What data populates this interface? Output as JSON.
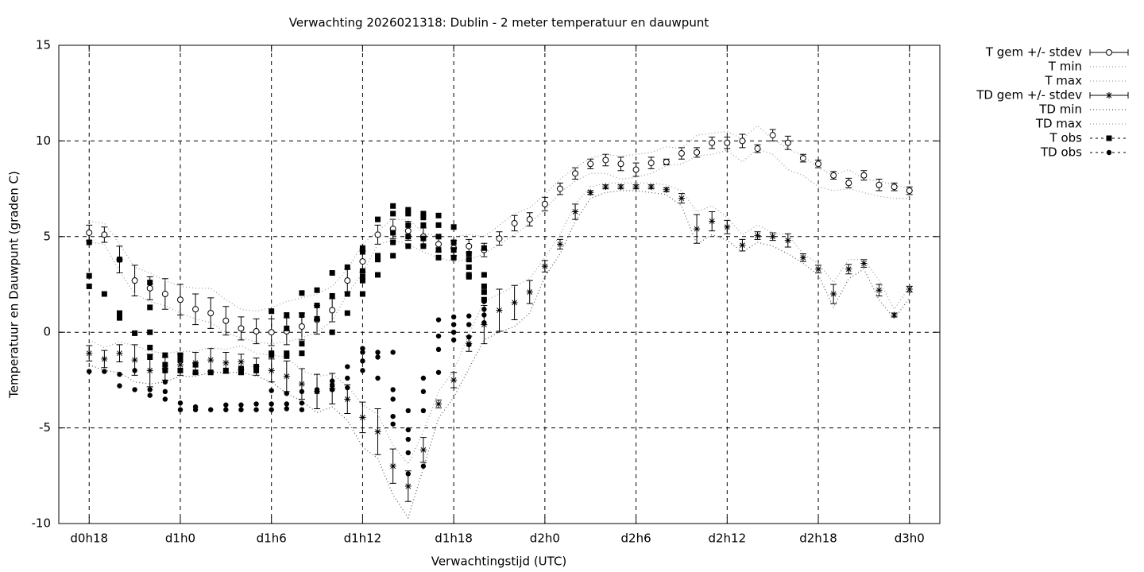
{
  "chart_data": {
    "type": "line",
    "title": "Verwachting 2026021318: Dublin - 2 meter temperatuur en dauwpunt",
    "xlabel": "Verwachtingstijd (UTC)",
    "ylabel": "Temperatuur en Dauwpunt (graden C)",
    "xlim": [
      16,
      74
    ],
    "ylim": [
      -10,
      15
    ],
    "xticks": [
      {
        "value": 18,
        "label": "d0h18"
      },
      {
        "value": 24,
        "label": "d1h0"
      },
      {
        "value": 30,
        "label": "d1h6"
      },
      {
        "value": 36,
        "label": "d1h12"
      },
      {
        "value": 42,
        "label": "d1h18"
      },
      {
        "value": 48,
        "label": "d2h0"
      },
      {
        "value": 54,
        "label": "d2h6"
      },
      {
        "value": 60,
        "label": "d2h12"
      },
      {
        "value": 66,
        "label": "d2h18"
      },
      {
        "value": 72,
        "label": "d3h0"
      }
    ],
    "yticks": [
      15,
      10,
      5,
      0,
      -5,
      -10
    ],
    "grid": true,
    "legend": "right",
    "x": [
      18,
      19,
      20,
      21,
      22,
      23,
      24,
      25,
      26,
      27,
      28,
      29,
      30,
      31,
      32,
      33,
      34,
      35,
      36,
      37,
      38,
      39,
      40,
      41,
      42,
      43,
      44,
      45,
      46,
      47,
      48,
      49,
      50,
      51,
      52,
      53,
      54,
      55,
      56,
      57,
      58,
      59,
      60,
      61,
      62,
      63,
      64,
      65,
      66,
      67,
      68,
      69,
      70,
      71,
      72
    ],
    "series": [
      {
        "name": "T gem +/- stdev",
        "color": "#000000",
        "style": "errorbars",
        "marker": "circle-open",
        "values": [
          5.2,
          5.1,
          3.8,
          2.7,
          2.3,
          2.0,
          1.7,
          1.2,
          1.0,
          0.6,
          0.2,
          0.05,
          0.0,
          0.05,
          0.3,
          0.65,
          1.15,
          2.7,
          3.7,
          5.1,
          5.4,
          5.3,
          5.0,
          4.6,
          4.4,
          4.5,
          4.3,
          4.9,
          5.7,
          5.9,
          6.7,
          7.5,
          8.3,
          8.8,
          9.0,
          8.8,
          8.5,
          8.85,
          8.9,
          9.35,
          9.4,
          9.9,
          9.9,
          10.0,
          9.6,
          10.3,
          9.9,
          9.1,
          8.8,
          8.2,
          7.8,
          8.2,
          7.7,
          7.6,
          7.4
        ],
        "errors": [
          0.4,
          0.4,
          0.7,
          0.8,
          0.6,
          0.8,
          0.8,
          0.8,
          0.8,
          0.75,
          0.6,
          0.65,
          0.7,
          0.7,
          0.7,
          0.75,
          0.6,
          0.6,
          0.55,
          0.5,
          0.5,
          0.5,
          0.45,
          0.4,
          0.4,
          0.35,
          0.35,
          0.35,
          0.4,
          0.35,
          0.35,
          0.3,
          0.3,
          0.25,
          0.3,
          0.35,
          0.35,
          0.3,
          0.15,
          0.3,
          0.25,
          0.3,
          0.3,
          0.35,
          0.2,
          0.3,
          0.35,
          0.2,
          0.2,
          0.2,
          0.25,
          0.25,
          0.3,
          0.2,
          0.2
        ]
      },
      {
        "name": "T min",
        "color": "#999999",
        "style": "dotted",
        "values": [
          4.7,
          4.6,
          3.2,
          2.0,
          1.6,
          1.4,
          1.0,
          0.7,
          0.5,
          0.0,
          -0.3,
          -0.5,
          -0.6,
          -0.5,
          -0.3,
          0.0,
          0.6,
          2.0,
          3.1,
          4.6,
          4.8,
          4.6,
          4.2,
          3.9,
          3.7,
          3.8,
          4.1,
          4.6,
          5.1,
          5.7,
          6.4,
          7.3,
          7.9,
          8.3,
          8.3,
          8.0,
          8.1,
          8.3,
          8.7,
          8.8,
          9.2,
          9.3,
          9.5,
          8.9,
          9.6,
          9.3,
          8.5,
          8.2,
          7.6,
          7.4,
          7.5,
          7.3,
          7.1,
          7.0,
          7.0
        ]
      },
      {
        "name": "T max",
        "color": "#999999",
        "style": "dotted",
        "values": [
          5.8,
          5.7,
          4.6,
          3.4,
          3.1,
          2.7,
          2.4,
          2.3,
          2.3,
          1.7,
          1.2,
          1.1,
          1.3,
          1.6,
          1.8,
          2.0,
          2.4,
          3.3,
          4.6,
          5.3,
          5.9,
          5.9,
          5.2,
          5.0,
          5.0,
          5.1,
          5.0,
          5.6,
          6.2,
          6.5,
          7.2,
          8.0,
          8.6,
          9.1,
          9.3,
          9.2,
          9.3,
          9.4,
          9.7,
          9.6,
          10.3,
          10.4,
          10.5,
          10.1,
          10.8,
          10.1,
          9.6,
          9.2,
          8.6,
          8.2,
          8.5,
          8.0,
          7.9,
          7.7,
          7.5
        ]
      },
      {
        "name": "TD gem +/- stdev",
        "color": "#000000",
        "style": "errorbars",
        "marker": "star",
        "values": [
          -1.1,
          -1.4,
          -1.1,
          -1.45,
          -2.0,
          -1.9,
          -1.7,
          -1.6,
          -1.45,
          -1.6,
          -1.55,
          -1.8,
          -2.0,
          -2.3,
          -2.7,
          -3.1,
          -2.95,
          -3.5,
          -4.45,
          -5.2,
          -7.0,
          -8.05,
          -6.15,
          -3.75,
          -2.5,
          -0.6,
          0.4,
          1.15,
          1.55,
          2.1,
          3.45,
          4.6,
          6.3,
          7.3,
          7.6,
          7.6,
          7.6,
          7.6,
          7.45,
          7.0,
          5.4,
          5.8,
          5.5,
          4.55,
          5.05,
          5.0,
          4.8,
          3.9,
          3.3,
          2.0,
          3.3,
          3.6,
          2.2,
          0.9,
          2.25
        ],
        "errors": [
          0.4,
          0.45,
          0.45,
          0.8,
          0.85,
          0.6,
          0.55,
          0.55,
          0.6,
          0.55,
          0.4,
          0.45,
          0.6,
          0.8,
          0.8,
          0.9,
          0.8,
          0.75,
          0.8,
          1.2,
          0.9,
          0.8,
          0.65,
          0.2,
          0.4,
          0.4,
          1.0,
          1.1,
          0.9,
          0.6,
          0.3,
          0.25,
          0.4,
          0.1,
          0.1,
          0.1,
          0.1,
          0.1,
          0.1,
          0.25,
          0.75,
          0.5,
          0.35,
          0.3,
          0.2,
          0.2,
          0.35,
          0.2,
          0.2,
          0.5,
          0.25,
          0.2,
          0.3,
          0.1,
          0.15
        ]
      },
      {
        "name": "TD min",
        "color": "#555555",
        "style": "dotted",
        "values": [
          -1.7,
          -2.0,
          -2.1,
          -2.6,
          -2.7,
          -2.6,
          -2.3,
          -2.3,
          -2.1,
          -2.1,
          -2.1,
          -2.3,
          -2.6,
          -3.2,
          -3.6,
          -4.2,
          -3.9,
          -4.6,
          -6.0,
          -6.6,
          -8.5,
          -9.7,
          -7.1,
          -4.5,
          -3.4,
          -1.9,
          -0.4,
          0.0,
          0.3,
          1.0,
          2.9,
          4.1,
          5.8,
          7.0,
          7.3,
          7.4,
          7.4,
          7.3,
          7.2,
          6.6,
          4.6,
          5.1,
          4.8,
          4.2,
          4.7,
          4.5,
          4.1,
          3.6,
          3.0,
          1.3,
          2.8,
          3.3,
          1.7,
          0.7,
          1.8
        ]
      },
      {
        "name": "TD max",
        "color": "#999999",
        "style": "dotted",
        "values": [
          -0.4,
          -0.8,
          -0.5,
          -0.7,
          -1.0,
          -1.1,
          -1.0,
          -1.0,
          -0.8,
          -0.9,
          -0.7,
          -1.1,
          -1.2,
          -1.3,
          -2.0,
          -2.3,
          -2.2,
          -2.8,
          -3.8,
          -4.3,
          -5.9,
          -6.9,
          -5.2,
          -3.1,
          -2.0,
          -0.1,
          1.6,
          2.0,
          2.4,
          2.8,
          3.9,
          5.1,
          6.7,
          7.6,
          7.8,
          7.8,
          7.8,
          7.8,
          7.7,
          7.4,
          6.3,
          6.6,
          6.0,
          5.1,
          5.6,
          5.2,
          5.1,
          4.1,
          3.6,
          2.6,
          3.8,
          3.8,
          2.7,
          1.2,
          2.4
        ]
      },
      {
        "name": "T obs",
        "color": "#000000",
        "style": "points",
        "marker": "square",
        "x": [
          18,
          18,
          18,
          19,
          20,
          20,
          20,
          21,
          22,
          22,
          22,
          22,
          22,
          23,
          23,
          23,
          24,
          24,
          24,
          25,
          25,
          26,
          27,
          28,
          28,
          29,
          29,
          30,
          30,
          30,
          31,
          31,
          31,
          31,
          32,
          32,
          32,
          32,
          33,
          33,
          33,
          34,
          34,
          34,
          35,
          35,
          35,
          36,
          36,
          36,
          36,
          36,
          36,
          37,
          37,
          37,
          37,
          38,
          38,
          38,
          38,
          38,
          39,
          39,
          39,
          39,
          39,
          40,
          40,
          40,
          40,
          40,
          41,
          41,
          41,
          41,
          41,
          42,
          42,
          42,
          42,
          43,
          43,
          43,
          43,
          43,
          44,
          44,
          44,
          44,
          44
        ],
        "values": [
          4.7,
          2.95,
          2.4,
          2.0,
          3.8,
          1.0,
          0.75,
          -0.05,
          2.6,
          1.3,
          0.0,
          -0.8,
          -1.3,
          -1.2,
          -1.7,
          -2.0,
          -1.2,
          -1.45,
          -2.0,
          -1.7,
          -2.1,
          -2.1,
          -2.0,
          -1.9,
          -2.1,
          -1.8,
          -2.0,
          1.1,
          -1.1,
          -1.2,
          0.9,
          0.2,
          -1.1,
          -1.25,
          2.05,
          0.9,
          -0.6,
          -1.1,
          2.2,
          1.4,
          0.7,
          3.1,
          1.9,
          0.0,
          3.4,
          2.0,
          1.0,
          4.4,
          4.2,
          3.2,
          2.9,
          2.7,
          2.0,
          5.9,
          4.0,
          3.8,
          3.0,
          6.6,
          6.2,
          5.2,
          4.7,
          4.0,
          6.4,
          6.2,
          5.6,
          5.0,
          4.5,
          6.2,
          6.0,
          5.6,
          4.9,
          4.5,
          6.1,
          5.6,
          5.0,
          4.3,
          3.9,
          5.5,
          4.7,
          4.3,
          3.9,
          4.1,
          3.8,
          3.4,
          3.0,
          2.9,
          4.4,
          3.0,
          2.4,
          2.1,
          1.7
        ]
      },
      {
        "name": "TD obs",
        "color": "#000000",
        "style": "points",
        "marker": "circle",
        "x": [
          18,
          19,
          20,
          20,
          21,
          21,
          22,
          22,
          23,
          23,
          23,
          24,
          24,
          25,
          25,
          26,
          27,
          27,
          28,
          28,
          29,
          29,
          30,
          30,
          30,
          31,
          31,
          31,
          32,
          32,
          32,
          33,
          33,
          34,
          34,
          34,
          35,
          35,
          35,
          36,
          36,
          36,
          36,
          37,
          37,
          37,
          38,
          38,
          38,
          38,
          38,
          39,
          39,
          39,
          39,
          39,
          40,
          40,
          40,
          40,
          41,
          41,
          41,
          41,
          42,
          42,
          42,
          42,
          43,
          43,
          43,
          43,
          44,
          44,
          44,
          44
        ],
        "values": [
          -2.05,
          -2.05,
          -2.2,
          -2.8,
          -2.0,
          -3.0,
          -3.0,
          -3.3,
          -2.6,
          -3.1,
          -3.5,
          -3.7,
          -4.05,
          -3.9,
          -4.05,
          -4.05,
          -3.8,
          -4.05,
          -3.8,
          -4.05,
          -3.75,
          -4.05,
          -3.05,
          -3.75,
          -4.05,
          -3.2,
          -3.75,
          -4.0,
          -3.1,
          -3.7,
          -4.05,
          -3.0,
          -3.1,
          -2.55,
          -2.75,
          -3.0,
          -1.8,
          -2.4,
          -2.9,
          -0.85,
          -1.05,
          -1.5,
          -2.0,
          -1.05,
          -1.3,
          -2.4,
          -1.05,
          -3.0,
          -3.5,
          -4.4,
          -4.8,
          -4.1,
          -5.1,
          -5.6,
          -6.3,
          -7.4,
          -2.4,
          -3.1,
          -4.1,
          -7.0,
          0.65,
          -0.2,
          -0.9,
          -2.1,
          0.8,
          0.4,
          0.0,
          -0.4,
          0.85,
          0.4,
          -0.25,
          -0.65,
          1.6,
          1.2,
          0.9,
          0.5
        ]
      }
    ]
  }
}
